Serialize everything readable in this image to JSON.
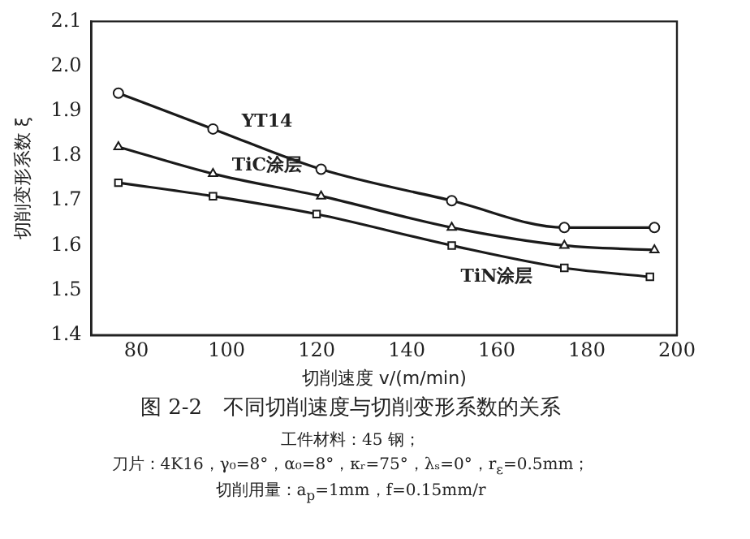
{
  "chart_data": {
    "type": "line",
    "title": "图 2-2　不同切削速度与切削变形系数的关系",
    "xlabel": "切削速度 v/(m/min)",
    "ylabel": "切削变形系数 ξ",
    "annotations": [
      "工件材料：45 钢；",
      "刀片：4K16，γ₀=8°，α₀=8°，κᵣ=75°，λₛ=0°，r$_{ε}$=0.5mm；",
      "切削用量：a$_{p}$=1mm，f=0.15mm/r"
    ],
    "series": [
      {
        "name": "YT14",
        "color": "#1a1a1a",
        "marker": "circle",
        "x": [
          76,
          97,
          121,
          150,
          175,
          195
        ],
        "values": [
          1.94,
          1.86,
          1.77,
          1.7,
          1.64,
          1.64
        ]
      },
      {
        "name": "TiC涂层",
        "color": "#1a1a1a",
        "marker": "triangle",
        "x": [
          76,
          97,
          121,
          150,
          175,
          195
        ],
        "values": [
          1.82,
          1.76,
          1.71,
          1.64,
          1.6,
          1.59
        ]
      },
      {
        "name": "TiN涂层",
        "color": "#1a1a1a",
        "marker": "square",
        "x": [
          76,
          97,
          120,
          150,
          175,
          194
        ],
        "values": [
          1.74,
          1.71,
          1.67,
          1.6,
          1.55,
          1.53
        ]
      }
    ],
    "xlim": [
      70,
      200
    ],
    "xticks": [
      80,
      100,
      120,
      140,
      160,
      180,
      200
    ],
    "ylim": [
      1.4,
      2.1
    ],
    "yticks": [
      1.4,
      1.5,
      1.6,
      1.7,
      1.8,
      1.9,
      {
        "value": 2.0,
        "label": "2.0"
      },
      2.1
    ],
    "grid": false,
    "legend": false,
    "line_style": "solid"
  }
}
